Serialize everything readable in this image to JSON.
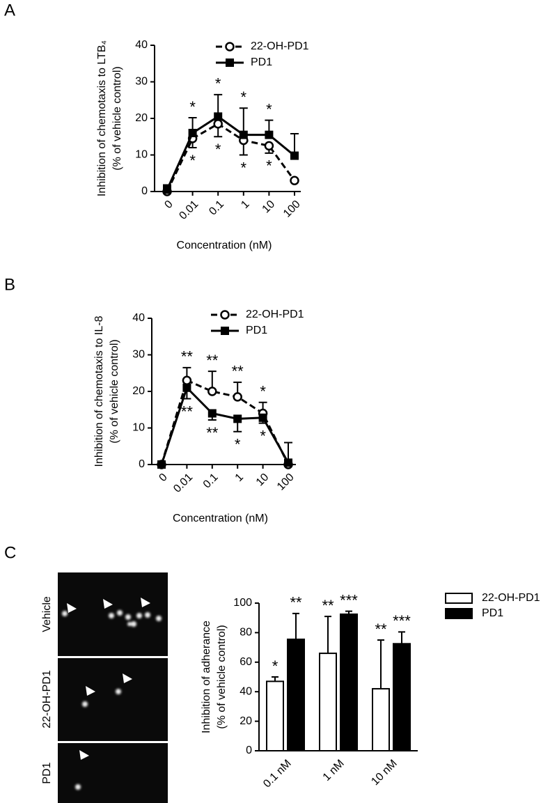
{
  "panel_labels": [
    "A",
    "B",
    "C"
  ],
  "image_labels": [
    "Vehicle",
    "22-OH-PD1",
    "PD1"
  ],
  "chart_data": [
    {
      "type": "line",
      "ylabel": [
        "Inhibition of chemotaxis to LTB₄",
        "(% of vehicle control)"
      ],
      "xlabel": "Concentration (nM)",
      "categories": [
        "0",
        "0.01",
        "0.1",
        "1",
        "10",
        "100"
      ],
      "ylim": [
        0,
        40
      ],
      "yticks": [
        0,
        10,
        20,
        30,
        40
      ],
      "series": [
        {
          "name": "22-OH-PD1",
          "color": "#000000",
          "marker": "open-circle",
          "dashed": true,
          "values": [
            0,
            14.5,
            18.5,
            14,
            12.5,
            3
          ],
          "errors": [
            null,
            2.5,
            3.5,
            4,
            2,
            null
          ],
          "error_direction": "down",
          "annotations": [
            null,
            "*",
            "*",
            "*",
            "*",
            null
          ],
          "annotation_position": "below"
        },
        {
          "name": "PD1",
          "color": "#000000",
          "marker": "square",
          "dashed": false,
          "values": [
            0.5,
            16,
            20.5,
            15.5,
            15.5,
            9.8
          ],
          "errors": [
            1.3,
            4.2,
            6,
            7.3,
            4,
            6
          ],
          "error_direction": "up",
          "annotations": [
            null,
            "*",
            "*",
            "*",
            "*",
            null
          ],
          "annotation_position": "above"
        }
      ]
    },
    {
      "type": "line",
      "ylabel": [
        "Inhibition of chemotaxis to IL-8",
        "(% of vehicle control)"
      ],
      "xlabel": "Concentration (nM)",
      "categories": [
        "0",
        "0.01",
        "0.1",
        "1",
        "10",
        "100"
      ],
      "ylim": [
        0,
        40
      ],
      "yticks": [
        0,
        10,
        20,
        30,
        40
      ],
      "series": [
        {
          "name": "22-OH-PD1",
          "color": "#000000",
          "marker": "open-circle",
          "dashed": true,
          "values": [
            0,
            23,
            20,
            18.5,
            14,
            0
          ],
          "errors": [
            null,
            3.5,
            5.5,
            4,
            3,
            6
          ],
          "error_direction": "up",
          "annotations": [
            null,
            "**",
            "**",
            "**",
            "*",
            null
          ],
          "annotation_position": "above"
        },
        {
          "name": "PD1",
          "color": "#000000",
          "marker": "square",
          "dashed": false,
          "values": [
            0,
            21,
            14,
            12.5,
            12.8,
            0.5
          ],
          "errors": [
            null,
            3,
            1.8,
            3.5,
            1.5,
            null
          ],
          "error_direction": "down",
          "annotations": [
            null,
            "**",
            "**",
            "*",
            "*",
            null
          ],
          "annotation_position": "below"
        }
      ]
    },
    {
      "type": "bar",
      "ylabel": [
        "Inhibition of adherance",
        "(% of vehicle control)"
      ],
      "categories": [
        "0.1 nM",
        "1 nM",
        "10 nM"
      ],
      "ylim": [
        0,
        100
      ],
      "yticks": [
        0,
        20,
        40,
        60,
        80,
        100
      ],
      "series": [
        {
          "name": "22-OH-PD1",
          "color": "#ffffff",
          "values": [
            47,
            66,
            42
          ],
          "errors": [
            3,
            25,
            33
          ],
          "annotations": [
            "*",
            "**",
            "**"
          ]
        },
        {
          "name": "PD1",
          "color": "#000000",
          "values": [
            75.5,
            92.5,
            72.5
          ],
          "errors": [
            17.5,
            2,
            8
          ],
          "annotations": [
            "**",
            "***",
            "***"
          ]
        }
      ]
    }
  ]
}
